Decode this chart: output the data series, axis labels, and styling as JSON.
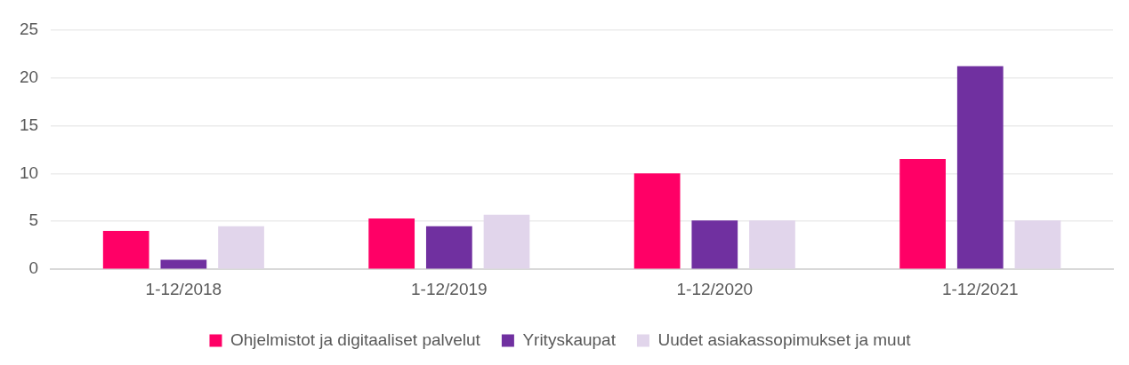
{
  "chart_data": {
    "type": "bar",
    "categories": [
      "1-12/2018",
      "1-12/2019",
      "1-12/2020",
      "1-12/2021"
    ],
    "series": [
      {
        "name": "Ohjelmistot ja digitaaliset palvelut",
        "color": "#ff0066",
        "values": [
          4.0,
          5.3,
          10.0,
          11.5
        ]
      },
      {
        "name": "Yrityskaupat",
        "color": "#7030a0",
        "values": [
          1.0,
          4.5,
          5.1,
          21.2
        ]
      },
      {
        "name": "Uudet asiakassopimukset ja muut",
        "color": "#e1d5eb",
        "values": [
          4.5,
          5.7,
          5.1,
          5.1
        ]
      }
    ],
    "ylim": [
      0,
      25
    ],
    "yticks": [
      0,
      5,
      10,
      15,
      20,
      25
    ],
    "grid": "y",
    "legend": "bottom"
  }
}
